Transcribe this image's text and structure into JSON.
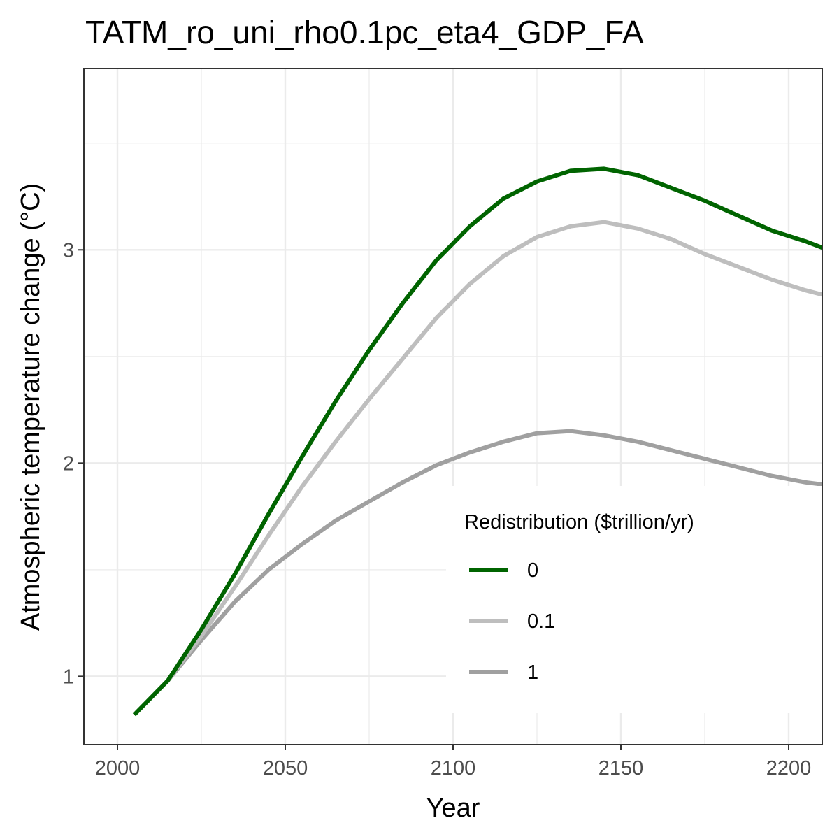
{
  "chart_data": {
    "type": "line",
    "title": "TATM_ro_uni_rho0.1pc_eta4_GDP_FA",
    "xlabel": "Year",
    "ylabel": "Atmospheric temperature change (°C)",
    "xlim": [
      1990,
      2210
    ],
    "ylim": [
      0.68,
      3.85
    ],
    "x_ticks": [
      2000,
      2050,
      2100,
      2150,
      2200
    ],
    "x_tick_labels": [
      "2000",
      "2050",
      "2100",
      "2150",
      "2200"
    ],
    "y_ticks": [
      1,
      2,
      3
    ],
    "y_tick_labels": [
      "1",
      "2",
      "3"
    ],
    "grid": true,
    "legend": {
      "title": "Redistribution ($trillion/yr)",
      "placement": "bottom-right inside"
    },
    "series": [
      {
        "name": "0",
        "color": "#006400",
        "x": [
          2005,
          2015,
          2025,
          2035,
          2045,
          2055,
          2065,
          2075,
          2085,
          2095,
          2105,
          2115,
          2125,
          2135,
          2145,
          2155,
          2165,
          2175,
          2185,
          2195,
          2205,
          2210
        ],
        "y": [
          0.82,
          0.98,
          1.22,
          1.48,
          1.76,
          2.03,
          2.29,
          2.53,
          2.75,
          2.95,
          3.11,
          3.24,
          3.32,
          3.37,
          3.38,
          3.35,
          3.29,
          3.23,
          3.16,
          3.09,
          3.04,
          3.01
        ]
      },
      {
        "name": "0.1",
        "color": "#bebebe",
        "x": [
          2015,
          2025,
          2035,
          2045,
          2055,
          2065,
          2075,
          2085,
          2095,
          2105,
          2115,
          2125,
          2135,
          2145,
          2155,
          2165,
          2175,
          2185,
          2195,
          2205,
          2210
        ],
        "y": [
          0.98,
          1.19,
          1.42,
          1.66,
          1.89,
          2.1,
          2.3,
          2.49,
          2.68,
          2.84,
          2.97,
          3.06,
          3.11,
          3.13,
          3.1,
          3.05,
          2.98,
          2.92,
          2.86,
          2.81,
          2.79
        ]
      },
      {
        "name": "1",
        "color": "#a0a0a0",
        "x": [
          2015,
          2025,
          2035,
          2045,
          2055,
          2065,
          2075,
          2085,
          2095,
          2105,
          2115,
          2125,
          2135,
          2145,
          2155,
          2165,
          2175,
          2185,
          2195,
          2205,
          2210
        ],
        "y": [
          0.98,
          1.17,
          1.35,
          1.5,
          1.62,
          1.73,
          1.82,
          1.91,
          1.99,
          2.05,
          2.1,
          2.14,
          2.15,
          2.13,
          2.1,
          2.06,
          2.02,
          1.98,
          1.94,
          1.91,
          1.9
        ]
      }
    ]
  }
}
